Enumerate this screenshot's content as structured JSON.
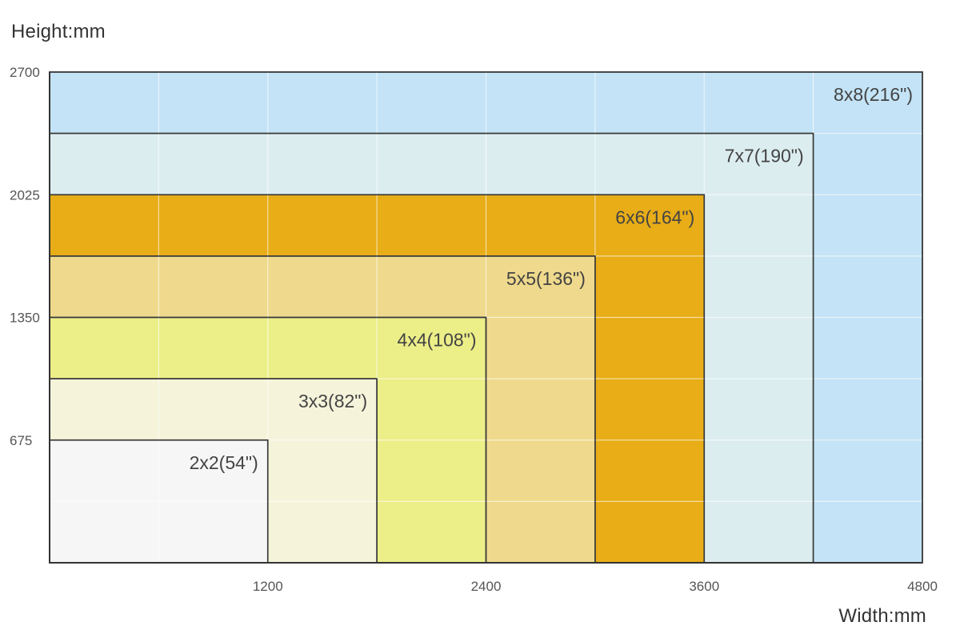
{
  "chart_data": {
    "type": "area",
    "ylabel": "Height:mm",
    "xlabel": "Width:mm",
    "xlim": [
      0,
      4800
    ],
    "ylim": [
      0,
      2700
    ],
    "x_ticks": [
      1200,
      2400,
      3600,
      4800
    ],
    "y_ticks": [
      675,
      1350,
      2025,
      2700
    ],
    "grid": true,
    "series": [
      {
        "name": "8x8(216\")",
        "width": 4800,
        "height": 2700,
        "color": "#c4e3f6"
      },
      {
        "name": "7x7(190\")",
        "width": 4200,
        "height": 2362.5,
        "color": "#dcedf0"
      },
      {
        "name": "6x6(164\")",
        "width": 3600,
        "height": 2025,
        "color": "#e8ad17"
      },
      {
        "name": "5x5(136\")",
        "width": 3000,
        "height": 1687.5,
        "color": "#efd98c"
      },
      {
        "name": "4x4(108\")",
        "width": 2400,
        "height": 1350,
        "color": "#ecee88"
      },
      {
        "name": "3x3(82\")",
        "width": 1800,
        "height": 1012.5,
        "color": "#f5f4db"
      },
      {
        "name": "2x2(54\")",
        "width": 1200,
        "height": 675,
        "color": "#f6f6f6"
      }
    ]
  }
}
